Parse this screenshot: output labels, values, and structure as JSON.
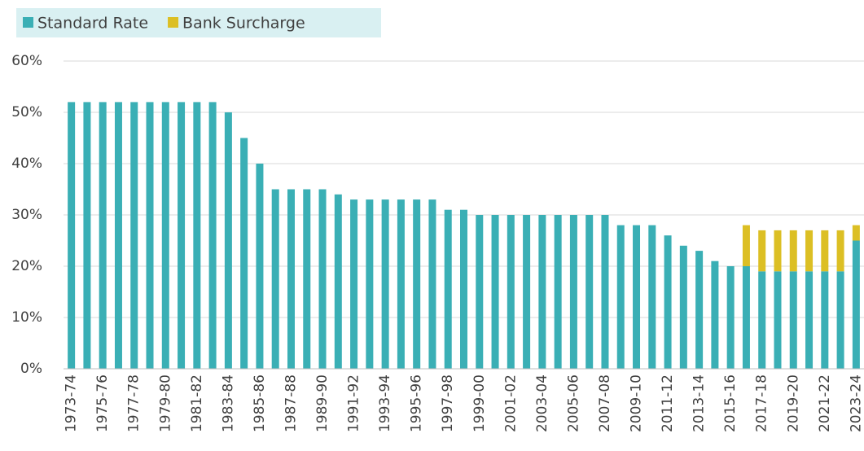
{
  "chart_data": {
    "type": "stacked_bar",
    "categories": [
      "1973-74",
      null,
      "1975-76",
      null,
      "1977-78",
      null,
      "1979-80",
      null,
      "1981-82",
      null,
      "1983-84",
      null,
      "1985-86",
      null,
      "1987-88",
      null,
      "1989-90",
      null,
      "1991-92",
      null,
      "1993-94",
      null,
      "1995-96",
      null,
      "1997-98",
      null,
      "1999-00",
      null,
      "2001-02",
      null,
      "2003-04",
      null,
      "2005-06",
      null,
      "2007-08",
      null,
      "2009-10",
      null,
      "2011-12",
      null,
      "2013-14",
      null,
      "2015-16",
      null,
      "2017-18",
      null,
      "2019-20",
      null,
      "2021-22",
      null,
      "2023-24"
    ],
    "series": [
      {
        "name": "Standard Rate",
        "color": "#3aafb5",
        "values": [
          52,
          52,
          52,
          52,
          52,
          52,
          52,
          52,
          52,
          52,
          50,
          45,
          40,
          35,
          35,
          35,
          35,
          34,
          33,
          33,
          33,
          33,
          33,
          33,
          31,
          31,
          30,
          30,
          30,
          30,
          30,
          30,
          30,
          30,
          30,
          28,
          28,
          28,
          26,
          24,
          23,
          21,
          20,
          20,
          19,
          19,
          19,
          19,
          19,
          19,
          25
        ]
      },
      {
        "name": "Bank Surcharge",
        "color": "#dcbf24",
        "values": [
          0,
          0,
          0,
          0,
          0,
          0,
          0,
          0,
          0,
          0,
          0,
          0,
          0,
          0,
          0,
          0,
          0,
          0,
          0,
          0,
          0,
          0,
          0,
          0,
          0,
          0,
          0,
          0,
          0,
          0,
          0,
          0,
          0,
          0,
          0,
          0,
          0,
          0,
          0,
          0,
          0,
          0,
          0,
          8,
          8,
          8,
          8,
          8,
          8,
          8,
          3
        ]
      }
    ],
    "ylim": [
      0,
      60
    ],
    "yticks": [
      {
        "value": 0,
        "label": "0%"
      },
      {
        "value": 10,
        "label": "10%"
      },
      {
        "value": 20,
        "label": "20%"
      },
      {
        "value": 30,
        "label": "30%"
      },
      {
        "value": 40,
        "label": "40%"
      },
      {
        "value": 50,
        "label": "50%"
      },
      {
        "value": 60,
        "label": "60%"
      }
    ],
    "grid": true,
    "legend": "top-left"
  }
}
